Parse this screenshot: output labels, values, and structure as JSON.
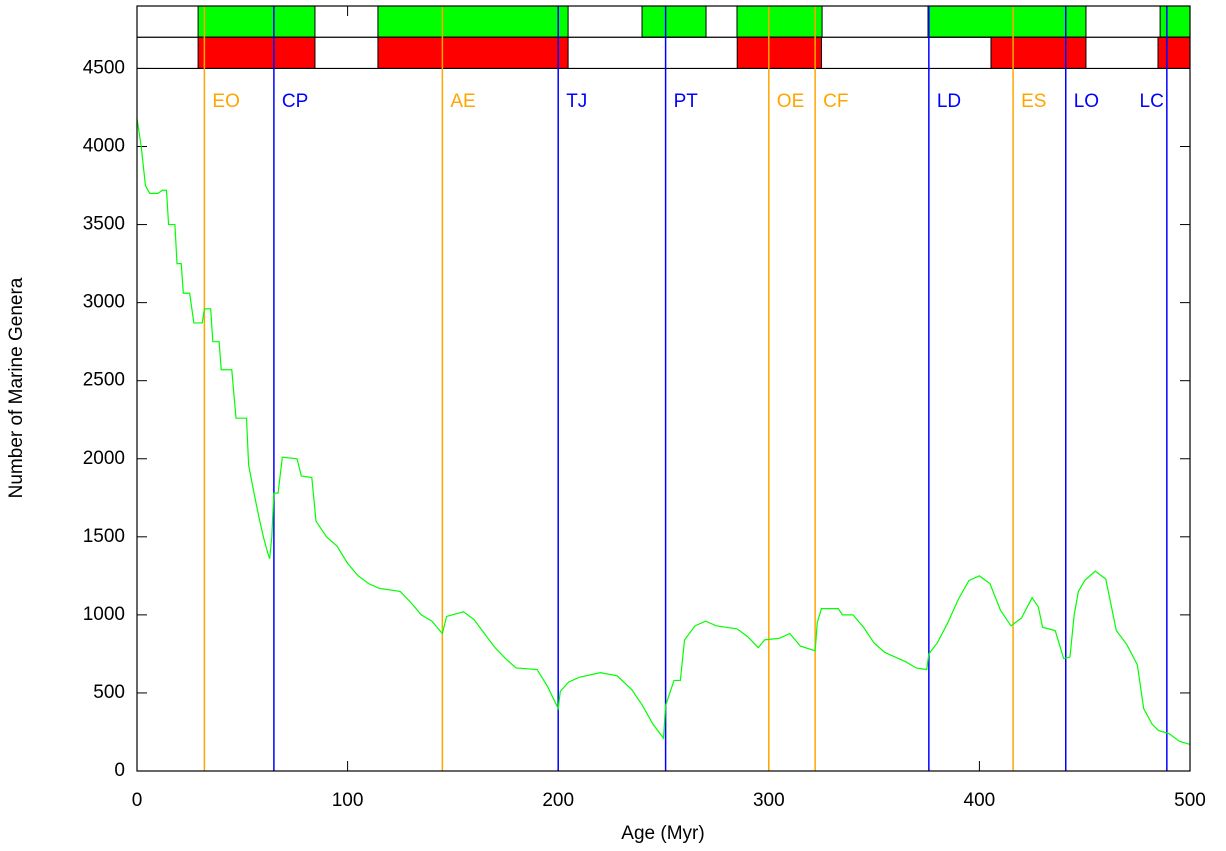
{
  "chart_data": {
    "type": "line",
    "xlabel": "Age (Myr)",
    "ylabel": "Number of Marine Genera",
    "xlim": [
      0,
      500
    ],
    "ylim": [
      0,
      4900
    ],
    "xticks": [
      0,
      100,
      200,
      300,
      400,
      500
    ],
    "yticks": [
      0,
      500,
      1000,
      1500,
      2000,
      2500,
      3000,
      3500,
      4000,
      4500
    ],
    "series": [
      {
        "color": "#00ff00",
        "x": [
          0,
          2,
          4,
          6,
          10,
          12,
          14,
          15,
          18,
          19,
          21,
          22,
          25,
          27,
          31,
          32,
          35,
          36,
          39,
          40,
          45,
          47,
          52,
          53,
          56,
          58,
          60,
          62,
          63,
          64,
          65,
          67,
          69,
          76,
          78,
          83,
          85,
          90,
          95,
          100,
          105,
          110,
          115,
          125,
          130,
          135,
          140,
          145,
          147,
          155,
          160,
          165,
          170,
          175,
          180,
          190,
          195,
          200,
          201,
          205,
          210,
          220,
          228,
          235,
          240,
          245,
          250,
          251,
          255,
          258,
          260,
          265,
          270,
          275,
          285,
          290,
          295,
          298,
          305,
          310,
          315,
          322,
          323,
          325,
          333,
          335,
          340,
          345,
          350,
          355,
          360,
          365,
          370,
          375,
          376,
          380,
          385,
          390,
          395,
          400,
          405,
          410,
          415,
          420,
          425,
          428,
          430,
          436,
          440,
          443,
          445,
          447,
          450,
          455,
          460,
          465,
          470,
          475,
          478,
          482,
          485,
          490,
          495,
          500
        ],
        "values": [
          4180,
          4000,
          3750,
          3700,
          3700,
          3720,
          3720,
          3500,
          3500,
          3250,
          3250,
          3060,
          3060,
          2870,
          2870,
          2960,
          2960,
          2750,
          2750,
          2570,
          2570,
          2260,
          2260,
          1960,
          1750,
          1620,
          1500,
          1400,
          1360,
          1500,
          1780,
          1780,
          2010,
          2000,
          1890,
          1880,
          1600,
          1500,
          1440,
          1330,
          1250,
          1200,
          1170,
          1150,
          1080,
          1000,
          960,
          880,
          990,
          1020,
          970,
          880,
          790,
          720,
          660,
          650,
          540,
          400,
          510,
          570,
          600,
          630,
          610,
          520,
          420,
          300,
          210,
          420,
          580,
          580,
          840,
          930,
          960,
          930,
          910,
          860,
          790,
          840,
          850,
          880,
          800,
          770,
          950,
          1040,
          1040,
          1000,
          1000,
          920,
          820,
          760,
          730,
          700,
          660,
          650,
          750,
          820,
          950,
          1100,
          1220,
          1250,
          1200,
          1030,
          930,
          980,
          1110,
          1050,
          920,
          900,
          720,
          730,
          1000,
          1150,
          1220,
          1280,
          1230,
          900,
          810,
          680,
          400,
          300,
          260,
          240,
          190,
          170
        ]
      }
    ],
    "events": [
      {
        "label": "EO",
        "x": 32,
        "color": "#ffa500"
      },
      {
        "label": "CP",
        "x": 65,
        "color": "#0000ff"
      },
      {
        "label": "AE",
        "x": 145,
        "color": "#ffa500"
      },
      {
        "label": "TJ",
        "x": 200,
        "color": "#0000ff"
      },
      {
        "label": "PT",
        "x": 251,
        "color": "#0000ff"
      },
      {
        "label": "OE",
        "x": 300,
        "color": "#ffa500"
      },
      {
        "label": "CF",
        "x": 322,
        "color": "#ffa500"
      },
      {
        "label": "LD",
        "x": 376,
        "color": "#0000ff"
      },
      {
        "label": "ES",
        "x": 416,
        "color": "#ffa500"
      },
      {
        "label": "LO",
        "x": 441,
        "color": "#0000ff"
      },
      {
        "label": "LC",
        "x": 489,
        "color": "#0000ff"
      }
    ],
    "top_bands": [
      {
        "color": "#00ff00",
        "intervals": [
          [
            29,
            84.5
          ],
          [
            114.4,
            204.7
          ],
          [
            239.8,
            270.2
          ],
          [
            284.9,
            325.3
          ],
          [
            375.6,
            450.6
          ],
          [
            485.8,
            500
          ]
        ]
      },
      {
        "color": "#ff0000",
        "intervals": [
          [
            29,
            84.5
          ],
          [
            114.4,
            204.7
          ],
          [
            285,
            325
          ],
          [
            405.5,
            450.6
          ],
          [
            484.8,
            500
          ]
        ]
      }
    ]
  }
}
